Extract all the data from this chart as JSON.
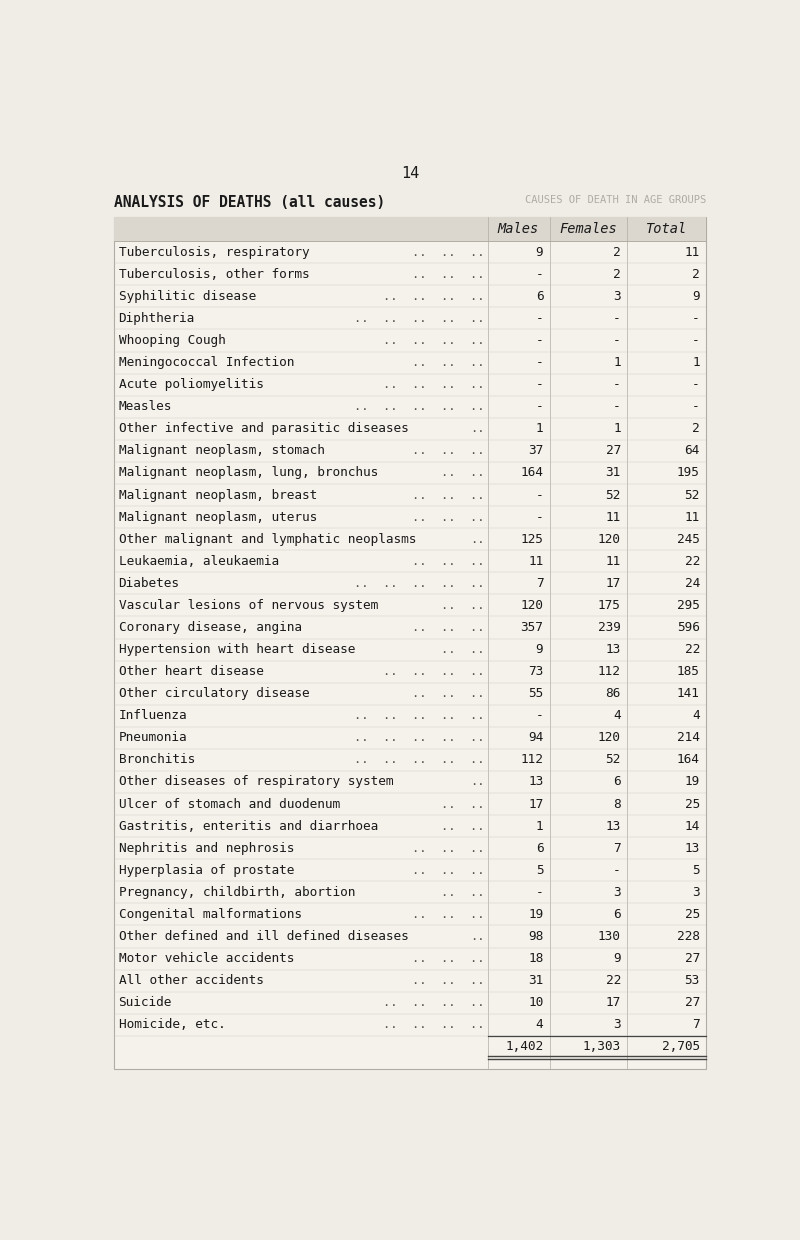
{
  "page_number": "14",
  "title": "ANALYSIS OF DEATHS (all causes)",
  "back_title": "CAUSES OF DEATH IN AGE GROUPS",
  "col_headers": [
    "Males",
    "Females",
    "Total"
  ],
  "rows": [
    {
      "label": "Tuberculosis, respiratory",
      "dots": "..  ..  ..",
      "males": "9",
      "females": "2",
      "total": "11"
    },
    {
      "label": "Tuberculosis, other forms",
      "dots": "..  ..  ..",
      "males": "-",
      "females": "2",
      "total": "2"
    },
    {
      "label": "Syphilitic disease",
      "dots": "..  ..  ..  ..",
      "males": "6",
      "females": "3",
      "total": "9"
    },
    {
      "label": "Diphtheria",
      "dots": "..  ..  ..  ..  ..",
      "males": "-",
      "females": "-",
      "total": "-"
    },
    {
      "label": "Whooping Cough",
      "dots": "..  ..  ..  ..",
      "males": "-",
      "females": "-",
      "total": "-"
    },
    {
      "label": "Meningococcal Infection",
      "dots": "..  ..  ..",
      "males": "-",
      "females": "1",
      "total": "1"
    },
    {
      "label": "Acute poliomyelitis",
      "dots": "..  ..  ..  ..",
      "males": "-",
      "females": "-",
      "total": "-"
    },
    {
      "label": "Measles",
      "dots": "..  ..  ..  ..  ..",
      "males": "-",
      "females": "-",
      "total": "-"
    },
    {
      "label": "Other infective and parasitic diseases",
      "dots": "..",
      "males": "1",
      "females": "1",
      "total": "2"
    },
    {
      "label": "Malignant neoplasm, stomach",
      "dots": "..  ..  ..",
      "males": "37",
      "females": "27",
      "total": "64"
    },
    {
      "label": "Malignant neoplasm, lung, bronchus",
      "dots": "..  ..",
      "males": "164",
      "females": "31",
      "total": "195"
    },
    {
      "label": "Malignant neoplasm, breast",
      "dots": "..  ..  ..",
      "males": "-",
      "females": "52",
      "total": "52"
    },
    {
      "label": "Malignant neoplasm, uterus",
      "dots": "..  ..  ..",
      "males": "-",
      "females": "11",
      "total": "11"
    },
    {
      "label": "Other malignant and lymphatic neoplasms",
      "dots": "..",
      "males": "125",
      "females": "120",
      "total": "245"
    },
    {
      "label": "Leukaemia, aleukaemia",
      "dots": "..  ..  ..",
      "males": "11",
      "females": "11",
      "total": "22"
    },
    {
      "label": "Diabetes",
      "dots": "..  ..  ..  ..  ..",
      "males": "7",
      "females": "17",
      "total": "24"
    },
    {
      "label": "Vascular lesions of nervous system",
      "dots": "..  ..",
      "males": "120",
      "females": "175",
      "total": "295"
    },
    {
      "label": "Coronary disease, angina",
      "dots": "..  ..  ..",
      "males": "357",
      "females": "239",
      "total": "596"
    },
    {
      "label": "Hypertension with heart disease",
      "dots": "..  ..",
      "males": "9",
      "females": "13",
      "total": "22"
    },
    {
      "label": "Other heart disease",
      "dots": "..  ..  ..  ..",
      "males": "73",
      "females": "112",
      "total": "185"
    },
    {
      "label": "Other circulatory disease",
      "dots": "..  ..  ..",
      "males": "55",
      "females": "86",
      "total": "141"
    },
    {
      "label": "Influenza",
      "dots": "..  ..  ..  ..  ..",
      "males": "-",
      "females": "4",
      "total": "4"
    },
    {
      "label": "Pneumonia",
      "dots": "..  ..  ..  ..  ..",
      "males": "94",
      "females": "120",
      "total": "214"
    },
    {
      "label": "Bronchitis",
      "dots": "..  ..  ..  ..  ..",
      "males": "112",
      "females": "52",
      "total": "164"
    },
    {
      "label": "Other diseases of respiratory system",
      "dots": "..",
      "males": "13",
      "females": "6",
      "total": "19"
    },
    {
      "label": "Ulcer of stomach and duodenum",
      "dots": "..  ..",
      "males": "17",
      "females": "8",
      "total": "25"
    },
    {
      "label": "Gastritis, enteritis and diarrhoea",
      "dots": "..  ..",
      "males": "1",
      "females": "13",
      "total": "14"
    },
    {
      "label": "Nephritis and nephrosis",
      "dots": "..  ..  ..",
      "males": "6",
      "females": "7",
      "total": "13"
    },
    {
      "label": "Hyperplasia of prostate",
      "dots": "..  ..  ..",
      "males": "5",
      "females": "-",
      "total": "5"
    },
    {
      "label": "Pregnancy, childbirth, abortion",
      "dots": "..  ..",
      "males": "-",
      "females": "3",
      "total": "3"
    },
    {
      "label": "Congenital malformations",
      "dots": "..  ..  ..",
      "males": "19",
      "females": "6",
      "total": "25"
    },
    {
      "label": "Other defined and ill defined diseases",
      "dots": "..",
      "males": "98",
      "females": "130",
      "total": "228"
    },
    {
      "label": "Motor vehicle accidents",
      "dots": "..  ..  ..",
      "males": "18",
      "females": "9",
      "total": "27"
    },
    {
      "label": "All other accidents",
      "dots": "..  ..  ..",
      "males": "31",
      "females": "22",
      "total": "53"
    },
    {
      "label": "Suicide",
      "dots": "..  ..  ..  ..",
      "males": "10",
      "females": "17",
      "total": "27"
    },
    {
      "label": "Homicide, etc.",
      "dots": "..  ..  ..  ..",
      "males": "4",
      "females": "3",
      "total": "7"
    }
  ],
  "totals": {
    "males": "1,402",
    "females": "1,303",
    "total": "2,705"
  },
  "bg_color": "#f0ede6",
  "table_bg": "#f5f2ec",
  "header_bg": "#dbd7cf",
  "text_color": "#1a1a1a",
  "grid_color": "#b0aca4",
  "dots_color": "#555550",
  "label_fontsize": 9.2,
  "header_fontsize": 9.8,
  "title_fontsize": 10.5,
  "page_fontsize": 11
}
